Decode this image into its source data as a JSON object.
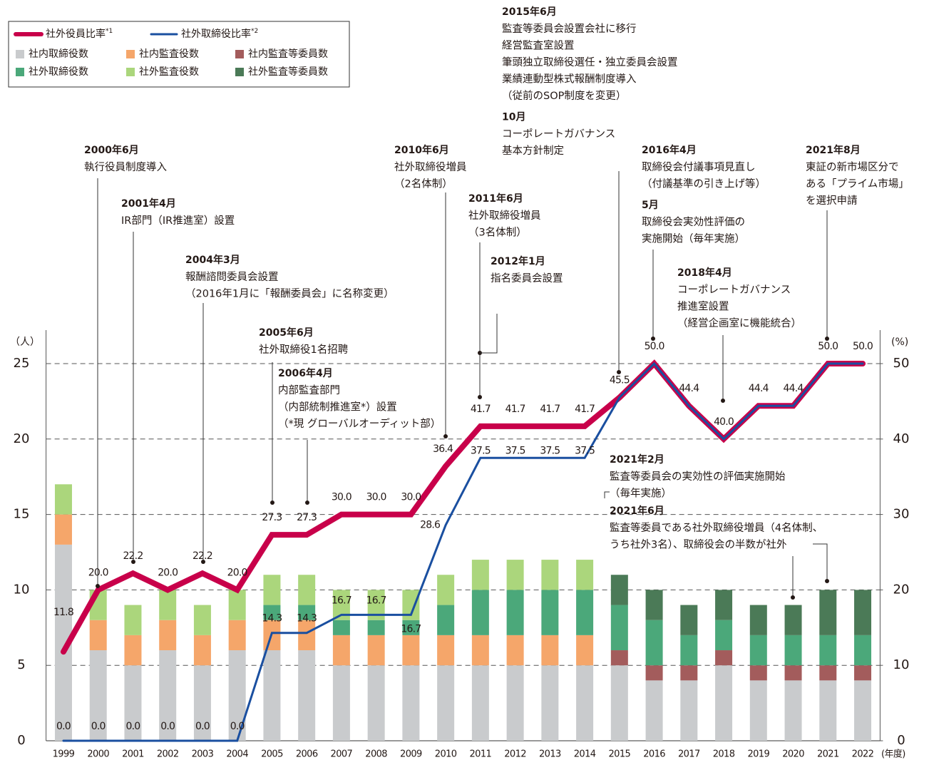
{
  "chart_data": {
    "type": "bar",
    "y_label": "（人）",
    "y2_label": "(%)",
    "x_label": "(年度)",
    "categories": [
      "1999",
      "2000",
      "2001",
      "2002",
      "2003",
      "2004",
      "2005",
      "2006",
      "2007",
      "2008",
      "2009",
      "2010",
      "2011",
      "2012",
      "2013",
      "2014",
      "2015",
      "2016",
      "2017",
      "2018",
      "2019",
      "2020",
      "2021",
      "2022"
    ],
    "ylim": [
      0,
      25
    ],
    "yticks": [
      0,
      5,
      10,
      15,
      20,
      25
    ],
    "y2lim": [
      0,
      50
    ],
    "y2ticks": [
      0,
      10,
      20,
      30,
      40,
      50
    ],
    "grid": true,
    "legend": "top-left",
    "series": [
      {
        "name": "社外役員比率",
        "note_mark": "*1",
        "type": "line",
        "axis": "y2",
        "color": "#c8004a",
        "values": [
          11.8,
          20.0,
          22.2,
          20.0,
          22.2,
          20.0,
          27.3,
          27.3,
          30.0,
          30.0,
          30.0,
          36.4,
          41.7,
          41.7,
          41.7,
          41.7,
          45.5,
          50.0,
          44.4,
          40.0,
          44.4,
          44.4,
          50.0,
          50.0
        ],
        "value_labels": [
          "11.8",
          "20.0",
          "22.2",
          "20.0",
          "22.2",
          "20.0",
          "27.3",
          "27.3",
          "30.0",
          "30.0",
          "30.0",
          "36.4",
          "41.7",
          "41.7",
          "41.7",
          "41.7",
          "45.5",
          "50.0",
          "44.4",
          "40.0",
          "44.4",
          "44.4",
          "50.0",
          "50.0"
        ]
      },
      {
        "name": "社外取締役比率",
        "note_mark": "*2",
        "type": "line",
        "axis": "y2",
        "color": "#1a4fa0",
        "values": [
          0,
          0,
          0,
          0,
          0,
          0,
          14.3,
          14.3,
          16.7,
          16.7,
          16.7,
          28.6,
          37.5,
          37.5,
          37.5,
          37.5,
          45.5,
          50.0,
          44.4,
          40.0,
          44.4,
          44.4,
          50.0,
          50.0
        ],
        "value_labels": [
          "0.0",
          "0.0",
          "0.0",
          "0.0",
          "0.0",
          "0.0",
          "14.3",
          "14.3",
          "16.7",
          "16.7",
          "16.7",
          "28.6",
          "37.5",
          "37.5",
          "37.5",
          "37.5",
          null,
          null,
          null,
          null,
          null,
          null,
          null,
          null
        ]
      },
      {
        "name": "社内取締役数",
        "type": "bar",
        "color": "#c9cbcd",
        "values": [
          13,
          6,
          5,
          6,
          5,
          6,
          6,
          6,
          5,
          5,
          5,
          5,
          5,
          5,
          5,
          5,
          5,
          4,
          4,
          5,
          4,
          4,
          4,
          4
        ]
      },
      {
        "name": "社内監査役数",
        "type": "bar",
        "color": "#f5a66a",
        "values": [
          2,
          2,
          2,
          2,
          2,
          2,
          2,
          2,
          2,
          2,
          2,
          2,
          2,
          2,
          2,
          2,
          0,
          0,
          0,
          0,
          0,
          0,
          0,
          0
        ]
      },
      {
        "name": "社内監査等委員数",
        "type": "bar",
        "color": "#a35c5c",
        "values": [
          0,
          0,
          0,
          0,
          0,
          0,
          0,
          0,
          0,
          0,
          0,
          0,
          0,
          0,
          0,
          0,
          1,
          1,
          1,
          1,
          1,
          1,
          1,
          1
        ]
      },
      {
        "name": "社外取締役数",
        "type": "bar",
        "color": "#4ba87a",
        "values": [
          0,
          0,
          0,
          0,
          0,
          0,
          1,
          1,
          1,
          1,
          1,
          2,
          3,
          3,
          3,
          3,
          3,
          3,
          2,
          2,
          2,
          2,
          2,
          2
        ]
      },
      {
        "name": "社外監査役数",
        "type": "bar",
        "color": "#abd67c",
        "values": [
          2,
          2,
          2,
          2,
          2,
          2,
          2,
          2,
          2,
          2,
          2,
          2,
          2,
          2,
          2,
          2,
          0,
          0,
          0,
          0,
          0,
          0,
          0,
          0
        ]
      },
      {
        "name": "社外監査等委員数",
        "type": "bar",
        "color": "#4b7a57",
        "values": [
          0,
          0,
          0,
          0,
          0,
          0,
          0,
          0,
          0,
          0,
          0,
          0,
          0,
          0,
          0,
          0,
          2,
          2,
          2,
          2,
          2,
          2,
          3,
          3
        ]
      }
    ],
    "annotations": [
      {
        "blocks": [
          {
            "date": "2000年6月",
            "text": [
              "執行役員制度導入"
            ]
          }
        ]
      },
      {
        "blocks": [
          {
            "date": "2001年4月",
            "text": [
              "IR部門（IR推進室）設置"
            ]
          }
        ]
      },
      {
        "blocks": [
          {
            "date": "2004年3月",
            "text": [
              "報酬諮問委員会設置",
              "（2016年1月に「報酬委員会」に名称変更）"
            ]
          }
        ]
      },
      {
        "blocks": [
          {
            "date": "2005年6月",
            "text": [
              "社外取締役1名招聘"
            ]
          }
        ]
      },
      {
        "blocks": [
          {
            "date": "2006年4月",
            "text": [
              "内部監査部門",
              "（内部統制推進室*）設置",
              "（*現 グローバルオーディット部）"
            ]
          }
        ]
      },
      {
        "blocks": [
          {
            "date": "2010年6月",
            "text": [
              "社外取締役増員",
              "（2名体制）"
            ]
          }
        ]
      },
      {
        "blocks": [
          {
            "date": "2011年6月",
            "text": [
              "社外取締役増員",
              "（3名体制）"
            ]
          }
        ]
      },
      {
        "blocks": [
          {
            "date": "2012年1月",
            "text": [
              "指名委員会設置"
            ]
          }
        ]
      },
      {
        "blocks": [
          {
            "date": "2015年6月",
            "text": [
              "監査等委員会設置会社に移行",
              "経営監査室設置",
              "筆頭独立取締役選任・独立委員会設置",
              "業績連動型株式報酬制度導入",
              "（従前のSOP制度を変更）"
            ]
          },
          {
            "date": "10月",
            "text": [
              "コーポレートガバナンス",
              "基本方針制定"
            ]
          }
        ]
      },
      {
        "blocks": [
          {
            "date": "2016年4月",
            "text": [
              "取締役会付議事項見直し",
              "（付議基準の引き上げ等）"
            ]
          },
          {
            "date": "5月",
            "text": [
              "取締役会実効性評価の",
              "実施開始（毎年実施）"
            ]
          }
        ]
      },
      {
        "blocks": [
          {
            "date": "2018年4月",
            "text": [
              "コーポレートガバナンス",
              "推進室設置",
              "（経営企画室に機能統合）"
            ]
          }
        ]
      },
      {
        "blocks": [
          {
            "date": "2021年8月",
            "text": [
              "東証の新市場区分で",
              "ある「プライム市場」",
              "を選択申請"
            ]
          }
        ]
      },
      {
        "blocks": [
          {
            "date": "2021年2月",
            "text": [
              "監査等委員会の実効性の評価実施開始",
              "（毎年実施）"
            ]
          }
        ]
      },
      {
        "blocks": [
          {
            "date": "2021年6月",
            "text": [
              "監査等委員である社外取締役増員（4名体制、",
              "うち社外3名）、取締役会の半数が社外"
            ]
          }
        ]
      }
    ]
  }
}
